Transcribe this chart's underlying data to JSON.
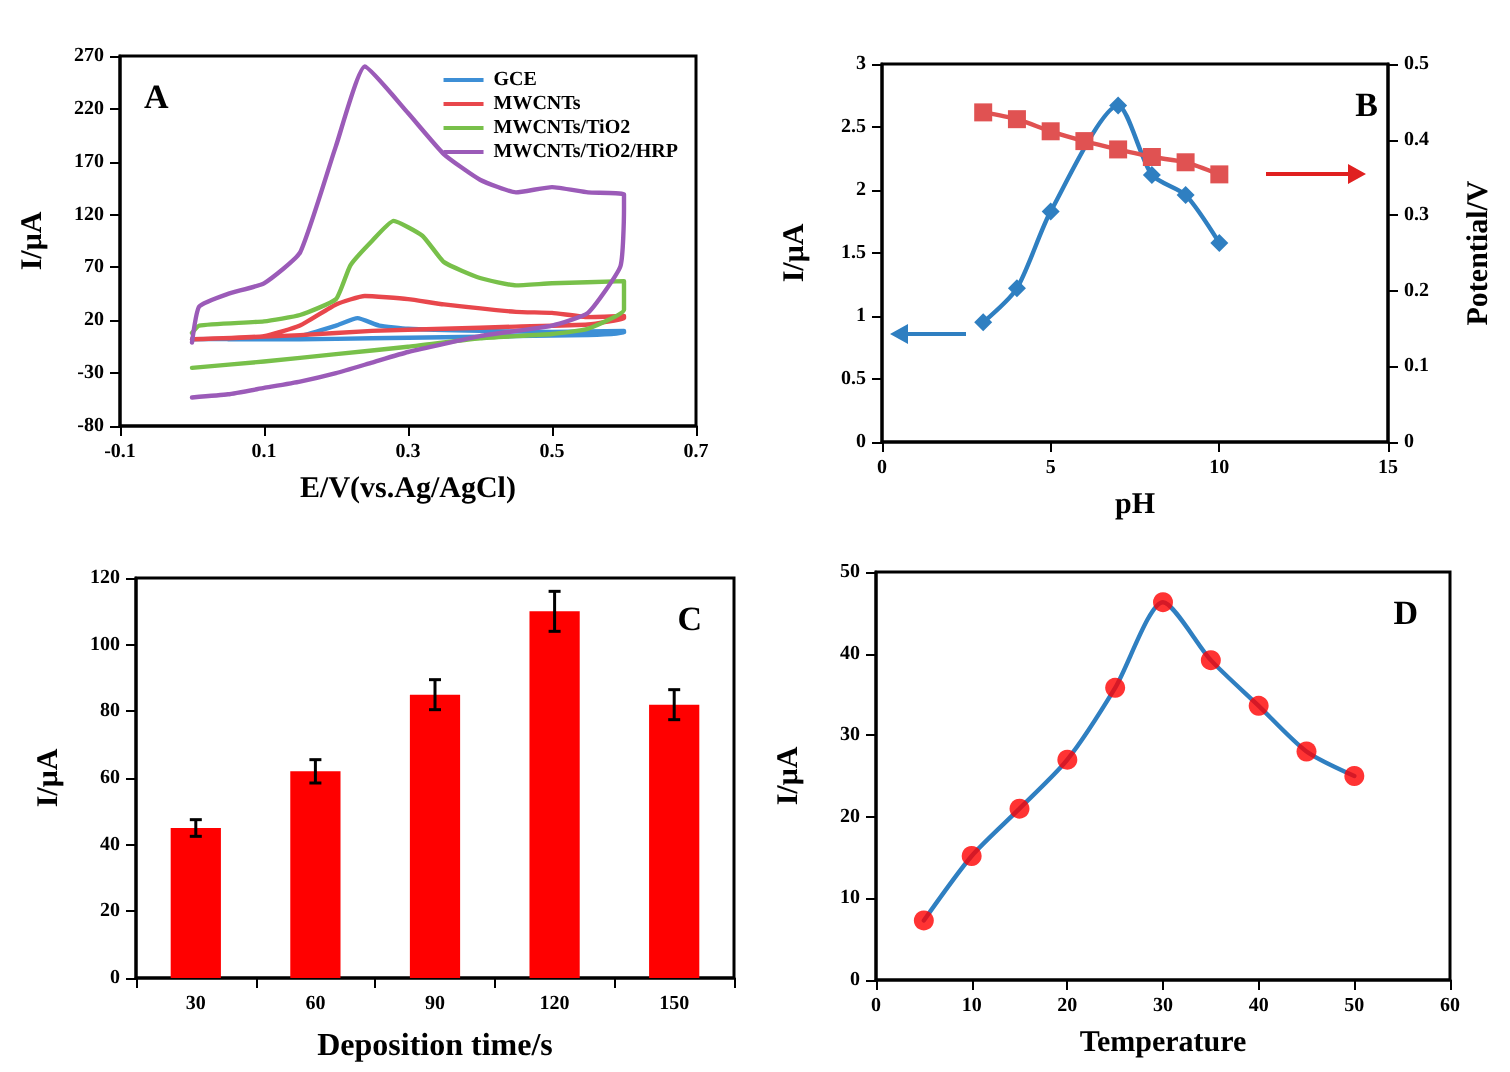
{
  "chart_data": [
    {
      "type": "line",
      "xlabel": "E/V(vs.Ag/AgCl)",
      "ylabel": "I/μA",
      "annotations": [
        "A"
      ],
      "xlim": [
        -0.1,
        0.7
      ],
      "xticks": [
        -0.1,
        0.1,
        0.3,
        0.5,
        0.7
      ],
      "ylim": [
        -80,
        270
      ],
      "yticks": [
        -80,
        -30,
        20,
        70,
        120,
        170,
        220,
        270
      ],
      "legend": "top right",
      "marker": "none",
      "series": [
        {
          "name": "GCE",
          "color": "#3d8fd6",
          "x": [
            0,
            0.1,
            0.15,
            0.2,
            0.23,
            0.26,
            0.3,
            0.4,
            0.5,
            0.6,
            0.6,
            0.55,
            0.45,
            0.35,
            0.25,
            0.15,
            0.05
          ],
          "values": [
            2,
            3,
            5,
            15,
            22,
            15,
            12,
            10,
            9,
            10,
            8,
            6,
            5,
            4,
            3,
            2,
            2
          ]
        },
        {
          "name": "MWCNTs",
          "color": "#e8474c",
          "x": [
            0,
            0.1,
            0.15,
            0.2,
            0.24,
            0.3,
            0.35,
            0.45,
            0.5,
            0.55,
            0.6,
            0.6,
            0.55,
            0.45,
            0.35,
            0.25,
            0.15,
            0.05
          ],
          "values": [
            2,
            5,
            15,
            35,
            43,
            40,
            35,
            28,
            27,
            23,
            24,
            22,
            16,
            14,
            12,
            10,
            6,
            3
          ]
        },
        {
          "name": "MWCNTs/TiO2",
          "color": "#78c04a",
          "x": [
            0,
            0.01,
            0.1,
            0.15,
            0.2,
            0.22,
            0.25,
            0.28,
            0.32,
            0.35,
            0.4,
            0.45,
            0.5,
            0.6,
            0.6,
            0.55,
            0.5,
            0.4,
            0.3,
            0.2,
            0.1,
            0
          ],
          "values": [
            8,
            15,
            19,
            25,
            40,
            72,
            95,
            114,
            100,
            75,
            60,
            53,
            55,
            57,
            30,
            12,
            7,
            3,
            -5,
            -12,
            -19,
            -25
          ]
        },
        {
          "name": "MWCNTs/TiO2/HRP",
          "color": "#9b5bb8",
          "x": [
            0,
            0.01,
            0.05,
            0.1,
            0.15,
            0.2,
            0.24,
            0.3,
            0.35,
            0.4,
            0.45,
            0.5,
            0.55,
            0.6,
            0.6,
            0.595,
            0.55,
            0.5,
            0.4,
            0.3,
            0.25,
            0.2,
            0.15,
            0.1,
            0.05,
            0
          ],
          "values": [
            -1,
            33,
            45,
            55,
            84,
            185,
            260,
            216,
            177,
            153,
            141,
            146,
            141,
            139,
            125,
            71,
            27,
            15,
            5,
            -10,
            -20,
            -30,
            -38,
            -44,
            -50,
            -53
          ]
        }
      ]
    },
    {
      "type": "line",
      "xlabel": "pH",
      "ylabel": "I/μA",
      "y2label": "Potential/V",
      "annotations": [
        "B"
      ],
      "x": [
        3,
        4,
        5,
        6,
        7,
        8,
        9,
        10
      ],
      "xlim": [
        0,
        15
      ],
      "xticks": [
        0,
        5,
        10,
        15
      ],
      "ylim": [
        0,
        3
      ],
      "yticks": [
        0,
        0.5,
        1,
        1.5,
        2,
        2.5,
        3
      ],
      "y2lim": [
        0,
        0.5
      ],
      "y2ticks": [
        0,
        0.1,
        0.2,
        0.3,
        0.4,
        0.5
      ],
      "series": [
        {
          "color": "#2f7fc1",
          "marker": "diamond",
          "values": [
            0.95,
            1.22,
            1.83,
            null,
            2.67,
            2.12,
            1.96,
            1.58
          ]
        },
        {
          "color": "#e05252",
          "marker": "square",
          "axis": "y2",
          "values": [
            0.436,
            0.427,
            0.411,
            0.398,
            0.387,
            0.377,
            0.37,
            0.354
          ]
        }
      ]
    },
    {
      "type": "bar",
      "xlabel": "Deposition time/s",
      "ylabel": "I/μA",
      "annotations": [
        "C"
      ],
      "categories": [
        "30",
        "60",
        "90",
        "120",
        "150"
      ],
      "values": [
        45,
        62,
        85,
        110,
        82
      ],
      "errors": [
        2.5,
        3.5,
        4.5,
        6,
        4.5
      ],
      "color": "#ff0000",
      "ylim": [
        0,
        120
      ],
      "yticks": [
        0,
        20,
        40,
        60,
        80,
        100,
        120
      ]
    },
    {
      "type": "line",
      "xlabel": "Temperature",
      "ylabel": "I/μA",
      "annotations": [
        "D"
      ],
      "x": [
        5,
        10,
        15,
        20,
        25,
        30,
        35,
        40,
        45,
        50
      ],
      "xlim": [
        0,
        60
      ],
      "xticks": [
        0,
        10,
        20,
        30,
        40,
        50,
        60
      ],
      "ylim": [
        0,
        50
      ],
      "yticks": [
        0,
        10,
        20,
        30,
        40,
        50
      ],
      "series": [
        {
          "color": "#2f7fc1",
          "marker": "none",
          "values": [
            7.3,
            15.2,
            21,
            27,
            35.8,
            46.3,
            39.2,
            33.6,
            28,
            25
          ]
        },
        {
          "type": "scatter",
          "color": "#ff0000",
          "marker": "circle",
          "values": [
            7.3,
            15.2,
            21,
            27,
            35.8,
            46.3,
            39.2,
            33.6,
            28,
            25
          ]
        }
      ]
    }
  ]
}
